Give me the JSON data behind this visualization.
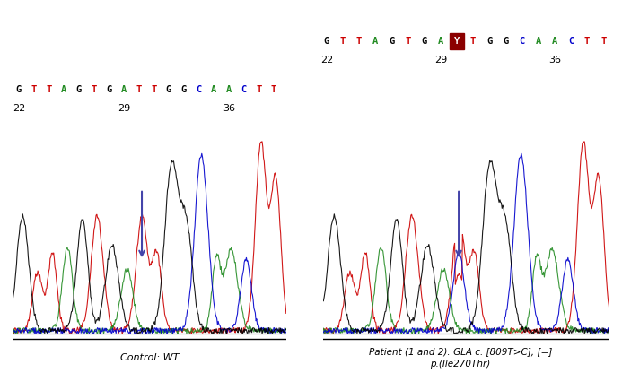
{
  "background": "#ffffff",
  "left_panel": {
    "sequence": [
      "G",
      "T",
      "T",
      "A",
      "G",
      "T",
      "G",
      "A",
      "T",
      "T",
      "G",
      "G",
      "C",
      "A",
      "A",
      "C",
      "T",
      "T"
    ],
    "seq_colors": [
      "#000000",
      "#cc0000",
      "#cc0000",
      "#228B22",
      "#000000",
      "#cc0000",
      "#000000",
      "#228B22",
      "#cc0000",
      "#cc0000",
      "#000000",
      "#000000",
      "#0000cc",
      "#228B22",
      "#228B22",
      "#0000cc",
      "#cc0000",
      "#cc0000"
    ],
    "numbers": [
      "22",
      "29",
      "36"
    ],
    "arrow_color": "#4444aa",
    "label": "Control: WT"
  },
  "right_panel": {
    "sequence": [
      "G",
      "T",
      "T",
      "A",
      "G",
      "T",
      "G",
      "A",
      "Y",
      "T",
      "G",
      "G",
      "C",
      "A",
      "A",
      "C",
      "T",
      "T"
    ],
    "seq_colors": [
      "#000000",
      "#cc0000",
      "#cc0000",
      "#228B22",
      "#000000",
      "#cc0000",
      "#000000",
      "#228B22",
      "#ffffff",
      "#cc0000",
      "#000000",
      "#000000",
      "#0000cc",
      "#228B22",
      "#228B22",
      "#0000cc",
      "#cc0000",
      "#cc0000"
    ],
    "highlight_index": 8,
    "highlight_bg": "#8B0000",
    "numbers": [
      "22",
      "29",
      "36"
    ],
    "arrow_color": "#4444aa",
    "label": "Patient (1 and 2): GLA c. [809T>C]; [=]\np.(Ile270Thr)"
  },
  "trace_colors": {
    "red": "#cc0000",
    "green": "#228B22",
    "blue": "#0000cc",
    "black": "#000000"
  }
}
